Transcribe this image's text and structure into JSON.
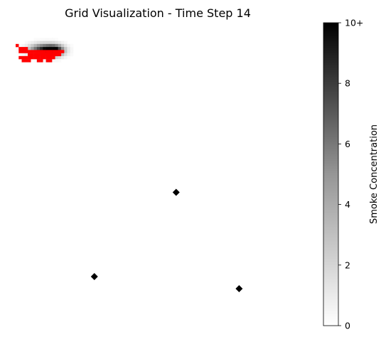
{
  "chart_data": {
    "type": "heatmap",
    "title": "Grid Visualization - Time Step 14",
    "grid_size": [
      100,
      100
    ],
    "colormap": "Greys",
    "smoke_blobs": [
      {
        "row": 8.5,
        "col": 9.0,
        "peak": 9.0,
        "sigma_x": 3.2,
        "sigma_y": 1.3
      },
      {
        "row": 8.7,
        "col": 12.5,
        "peak": 7.5,
        "sigma_x": 2.0,
        "sigma_y": 1.2
      }
    ],
    "fire_color": "#ff0000",
    "fire_cells": [
      [
        7,
        0
      ],
      [
        8,
        1
      ],
      [
        8,
        2
      ],
      [
        8,
        3
      ],
      [
        9,
        1
      ],
      [
        9,
        2
      ],
      [
        9,
        3
      ],
      [
        9,
        4
      ],
      [
        9,
        5
      ],
      [
        9,
        6
      ],
      [
        9,
        7
      ],
      [
        9,
        8
      ],
      [
        9,
        9
      ],
      [
        9,
        10
      ],
      [
        9,
        11
      ],
      [
        9,
        12
      ],
      [
        9,
        13
      ],
      [
        9,
        14
      ],
      [
        9,
        15
      ],
      [
        10,
        4
      ],
      [
        10,
        5
      ],
      [
        10,
        6
      ],
      [
        10,
        7
      ],
      [
        10,
        8
      ],
      [
        10,
        9
      ],
      [
        10,
        10
      ],
      [
        10,
        11
      ],
      [
        10,
        12
      ],
      [
        10,
        13
      ],
      [
        10,
        14
      ],
      [
        11,
        1
      ],
      [
        11,
        2
      ],
      [
        11,
        3
      ],
      [
        11,
        4
      ],
      [
        11,
        5
      ],
      [
        11,
        6
      ],
      [
        11,
        7
      ],
      [
        11,
        8
      ],
      [
        11,
        9
      ],
      [
        11,
        10
      ],
      [
        11,
        11
      ],
      [
        11,
        12
      ],
      [
        12,
        2
      ],
      [
        12,
        3
      ],
      [
        12,
        4
      ],
      [
        12,
        7
      ],
      [
        12,
        8
      ],
      [
        12,
        10
      ],
      [
        12,
        11
      ]
    ],
    "sensor_markers": [
      {
        "row": 55.5,
        "col": 52.5
      },
      {
        "row": 83.3,
        "col": 25.5
      },
      {
        "row": 87.3,
        "col": 73.3
      }
    ],
    "colorbar": {
      "label": "Smoke Concentration",
      "range": [
        0,
        10
      ],
      "ticks": [
        {
          "value": 0,
          "label": "0"
        },
        {
          "value": 2,
          "label": "2"
        },
        {
          "value": 4,
          "label": "4"
        },
        {
          "value": 6,
          "label": "6"
        },
        {
          "value": 8,
          "label": "8"
        },
        {
          "value": 10,
          "label": "10+"
        }
      ]
    }
  }
}
